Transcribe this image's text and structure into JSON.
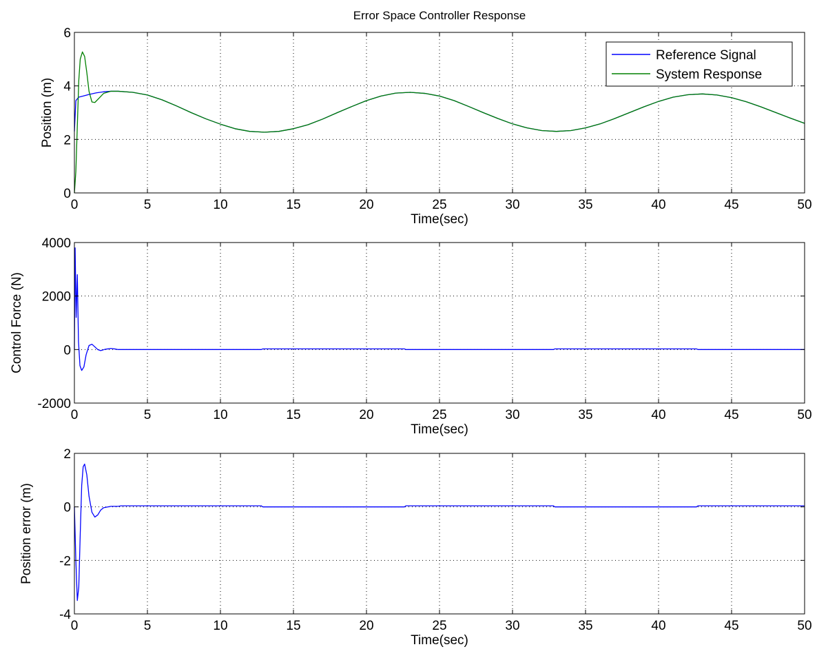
{
  "title": "Error Space Controller Response",
  "colors": {
    "reference": "#0000ff",
    "response": "#008000",
    "grid": "#000000",
    "axes": "#000000"
  },
  "chart_data": [
    {
      "type": "line",
      "title": "Error Space Controller Response",
      "xlabel": "Time(sec)",
      "ylabel": "Position (m)",
      "xlim": [
        0,
        50
      ],
      "ylim": [
        0,
        6
      ],
      "xticks": [
        0,
        5,
        10,
        15,
        20,
        25,
        30,
        35,
        40,
        45,
        50
      ],
      "yticks": [
        0,
        2,
        4,
        6
      ],
      "grid": true,
      "legend": {
        "position": "top-right",
        "entries": [
          "Reference Signal",
          "System Response"
        ]
      },
      "series": [
        {
          "name": "Reference Signal",
          "color": "#0000ff",
          "points": [
            [
              0,
              2.3
            ],
            [
              0.1,
              3.45
            ],
            [
              0.3,
              3.58
            ],
            [
              0.6,
              3.62
            ],
            [
              1,
              3.68
            ],
            [
              1.5,
              3.74
            ],
            [
              2,
              3.78
            ],
            [
              2.5,
              3.8
            ],
            [
              3,
              3.8
            ],
            [
              4,
              3.76
            ],
            [
              5,
              3.66
            ],
            [
              6,
              3.48
            ],
            [
              7,
              3.25
            ],
            [
              8,
              3.0
            ],
            [
              9,
              2.77
            ],
            [
              10,
              2.57
            ],
            [
              11,
              2.4
            ],
            [
              12,
              2.3
            ],
            [
              13,
              2.27
            ],
            [
              14,
              2.3
            ],
            [
              15,
              2.4
            ],
            [
              16,
              2.55
            ],
            [
              17,
              2.76
            ],
            [
              18,
              3.0
            ],
            [
              19,
              3.23
            ],
            [
              20,
              3.45
            ],
            [
              21,
              3.62
            ],
            [
              22,
              3.73
            ],
            [
              23,
              3.76
            ],
            [
              24,
              3.72
            ],
            [
              25,
              3.62
            ],
            [
              26,
              3.45
            ],
            [
              27,
              3.23
            ],
            [
              28,
              3.0
            ],
            [
              29,
              2.78
            ],
            [
              30,
              2.58
            ],
            [
              31,
              2.43
            ],
            [
              32,
              2.33
            ],
            [
              33,
              2.3
            ],
            [
              34,
              2.33
            ],
            [
              35,
              2.43
            ],
            [
              36,
              2.58
            ],
            [
              37,
              2.78
            ],
            [
              38,
              3.0
            ],
            [
              39,
              3.22
            ],
            [
              40,
              3.42
            ],
            [
              41,
              3.58
            ],
            [
              42,
              3.67
            ],
            [
              43,
              3.7
            ],
            [
              44,
              3.66
            ],
            [
              45,
              3.56
            ],
            [
              46,
              3.41
            ],
            [
              47,
              3.22
            ],
            [
              48,
              3.01
            ],
            [
              49,
              2.8
            ],
            [
              50,
              2.6
            ]
          ]
        },
        {
          "name": "System Response",
          "color": "#008000",
          "points": [
            [
              0,
              0
            ],
            [
              0.1,
              0.8
            ],
            [
              0.2,
              2.5
            ],
            [
              0.3,
              4.2
            ],
            [
              0.4,
              5.0
            ],
            [
              0.55,
              5.27
            ],
            [
              0.7,
              5.1
            ],
            [
              0.85,
              4.5
            ],
            [
              1,
              3.8
            ],
            [
              1.2,
              3.4
            ],
            [
              1.4,
              3.38
            ],
            [
              1.7,
              3.55
            ],
            [
              2,
              3.72
            ],
            [
              2.5,
              3.8
            ],
            [
              3,
              3.8
            ],
            [
              4,
              3.76
            ],
            [
              5,
              3.66
            ],
            [
              6,
              3.48
            ],
            [
              7,
              3.25
            ],
            [
              8,
              3.0
            ],
            [
              9,
              2.77
            ],
            [
              10,
              2.57
            ],
            [
              11,
              2.4
            ],
            [
              12,
              2.3
            ],
            [
              13,
              2.27
            ],
            [
              14,
              2.3
            ],
            [
              15,
              2.4
            ],
            [
              16,
              2.55
            ],
            [
              17,
              2.76
            ],
            [
              18,
              3.0
            ],
            [
              19,
              3.23
            ],
            [
              20,
              3.45
            ],
            [
              21,
              3.62
            ],
            [
              22,
              3.73
            ],
            [
              23,
              3.76
            ],
            [
              24,
              3.72
            ],
            [
              25,
              3.62
            ],
            [
              26,
              3.45
            ],
            [
              27,
              3.23
            ],
            [
              28,
              3.0
            ],
            [
              29,
              2.78
            ],
            [
              30,
              2.58
            ],
            [
              31,
              2.43
            ],
            [
              32,
              2.33
            ],
            [
              33,
              2.3
            ],
            [
              34,
              2.33
            ],
            [
              35,
              2.43
            ],
            [
              36,
              2.58
            ],
            [
              37,
              2.78
            ],
            [
              38,
              3.0
            ],
            [
              39,
              3.22
            ],
            [
              40,
              3.42
            ],
            [
              41,
              3.58
            ],
            [
              42,
              3.67
            ],
            [
              43,
              3.7
            ],
            [
              44,
              3.66
            ],
            [
              45,
              3.56
            ],
            [
              46,
              3.41
            ],
            [
              47,
              3.22
            ],
            [
              48,
              3.01
            ],
            [
              49,
              2.8
            ],
            [
              50,
              2.6
            ]
          ]
        }
      ]
    },
    {
      "type": "line",
      "xlabel": "Time(sec)",
      "ylabel": "Control Force (N)",
      "xlim": [
        0,
        50
      ],
      "ylim": [
        -2000,
        4000
      ],
      "xticks": [
        0,
        5,
        10,
        15,
        20,
        25,
        30,
        35,
        40,
        45,
        50
      ],
      "yticks": [
        -2000,
        0,
        2000,
        4000
      ],
      "grid": true,
      "series": [
        {
          "color": "#0000ff",
          "points": [
            [
              0,
              0
            ],
            [
              0.05,
              3800
            ],
            [
              0.12,
              1200
            ],
            [
              0.2,
              2800
            ],
            [
              0.28,
              300
            ],
            [
              0.38,
              -600
            ],
            [
              0.5,
              -780
            ],
            [
              0.65,
              -650
            ],
            [
              0.8,
              -200
            ],
            [
              1,
              150
            ],
            [
              1.2,
              200
            ],
            [
              1.4,
              100
            ],
            [
              1.6,
              0
            ],
            [
              1.8,
              -40
            ],
            [
              2.1,
              10
            ],
            [
              2.5,
              40
            ],
            [
              2.8,
              20
            ],
            [
              3,
              0
            ],
            [
              12.8,
              0
            ],
            [
              12.9,
              25
            ],
            [
              22.6,
              25
            ],
            [
              22.7,
              0
            ],
            [
              32.8,
              0
            ],
            [
              32.9,
              25
            ],
            [
              42.6,
              25
            ],
            [
              42.7,
              0
            ],
            [
              50,
              0
            ]
          ]
        }
      ]
    },
    {
      "type": "line",
      "xlabel": "Time(sec)",
      "ylabel": "Position error (m)",
      "xlim": [
        0,
        50
      ],
      "ylim": [
        -4,
        2
      ],
      "xticks": [
        0,
        5,
        10,
        15,
        20,
        25,
        30,
        35,
        40,
        45,
        50
      ],
      "yticks": [
        -4,
        -2,
        0,
        2
      ],
      "grid": true,
      "series": [
        {
          "color": "#0000ff",
          "points": [
            [
              0,
              0
            ],
            [
              0.1,
              -2.0
            ],
            [
              0.2,
              -3.5
            ],
            [
              0.3,
              -3.0
            ],
            [
              0.4,
              -1.0
            ],
            [
              0.5,
              0.8
            ],
            [
              0.6,
              1.5
            ],
            [
              0.7,
              1.6
            ],
            [
              0.85,
              1.2
            ],
            [
              1,
              0.4
            ],
            [
              1.2,
              -0.2
            ],
            [
              1.4,
              -0.38
            ],
            [
              1.6,
              -0.3
            ],
            [
              1.8,
              -0.12
            ],
            [
              2,
              -0.03
            ],
            [
              2.5,
              0.02
            ],
            [
              3,
              0.02
            ],
            [
              3.2,
              0.04
            ],
            [
              12.8,
              0.04
            ],
            [
              12.9,
              0
            ],
            [
              22.6,
              0
            ],
            [
              22.7,
              0.04
            ],
            [
              32.8,
              0.04
            ],
            [
              32.9,
              0
            ],
            [
              42.6,
              0
            ],
            [
              42.7,
              0.04
            ],
            [
              50,
              0.04
            ]
          ]
        }
      ]
    }
  ]
}
